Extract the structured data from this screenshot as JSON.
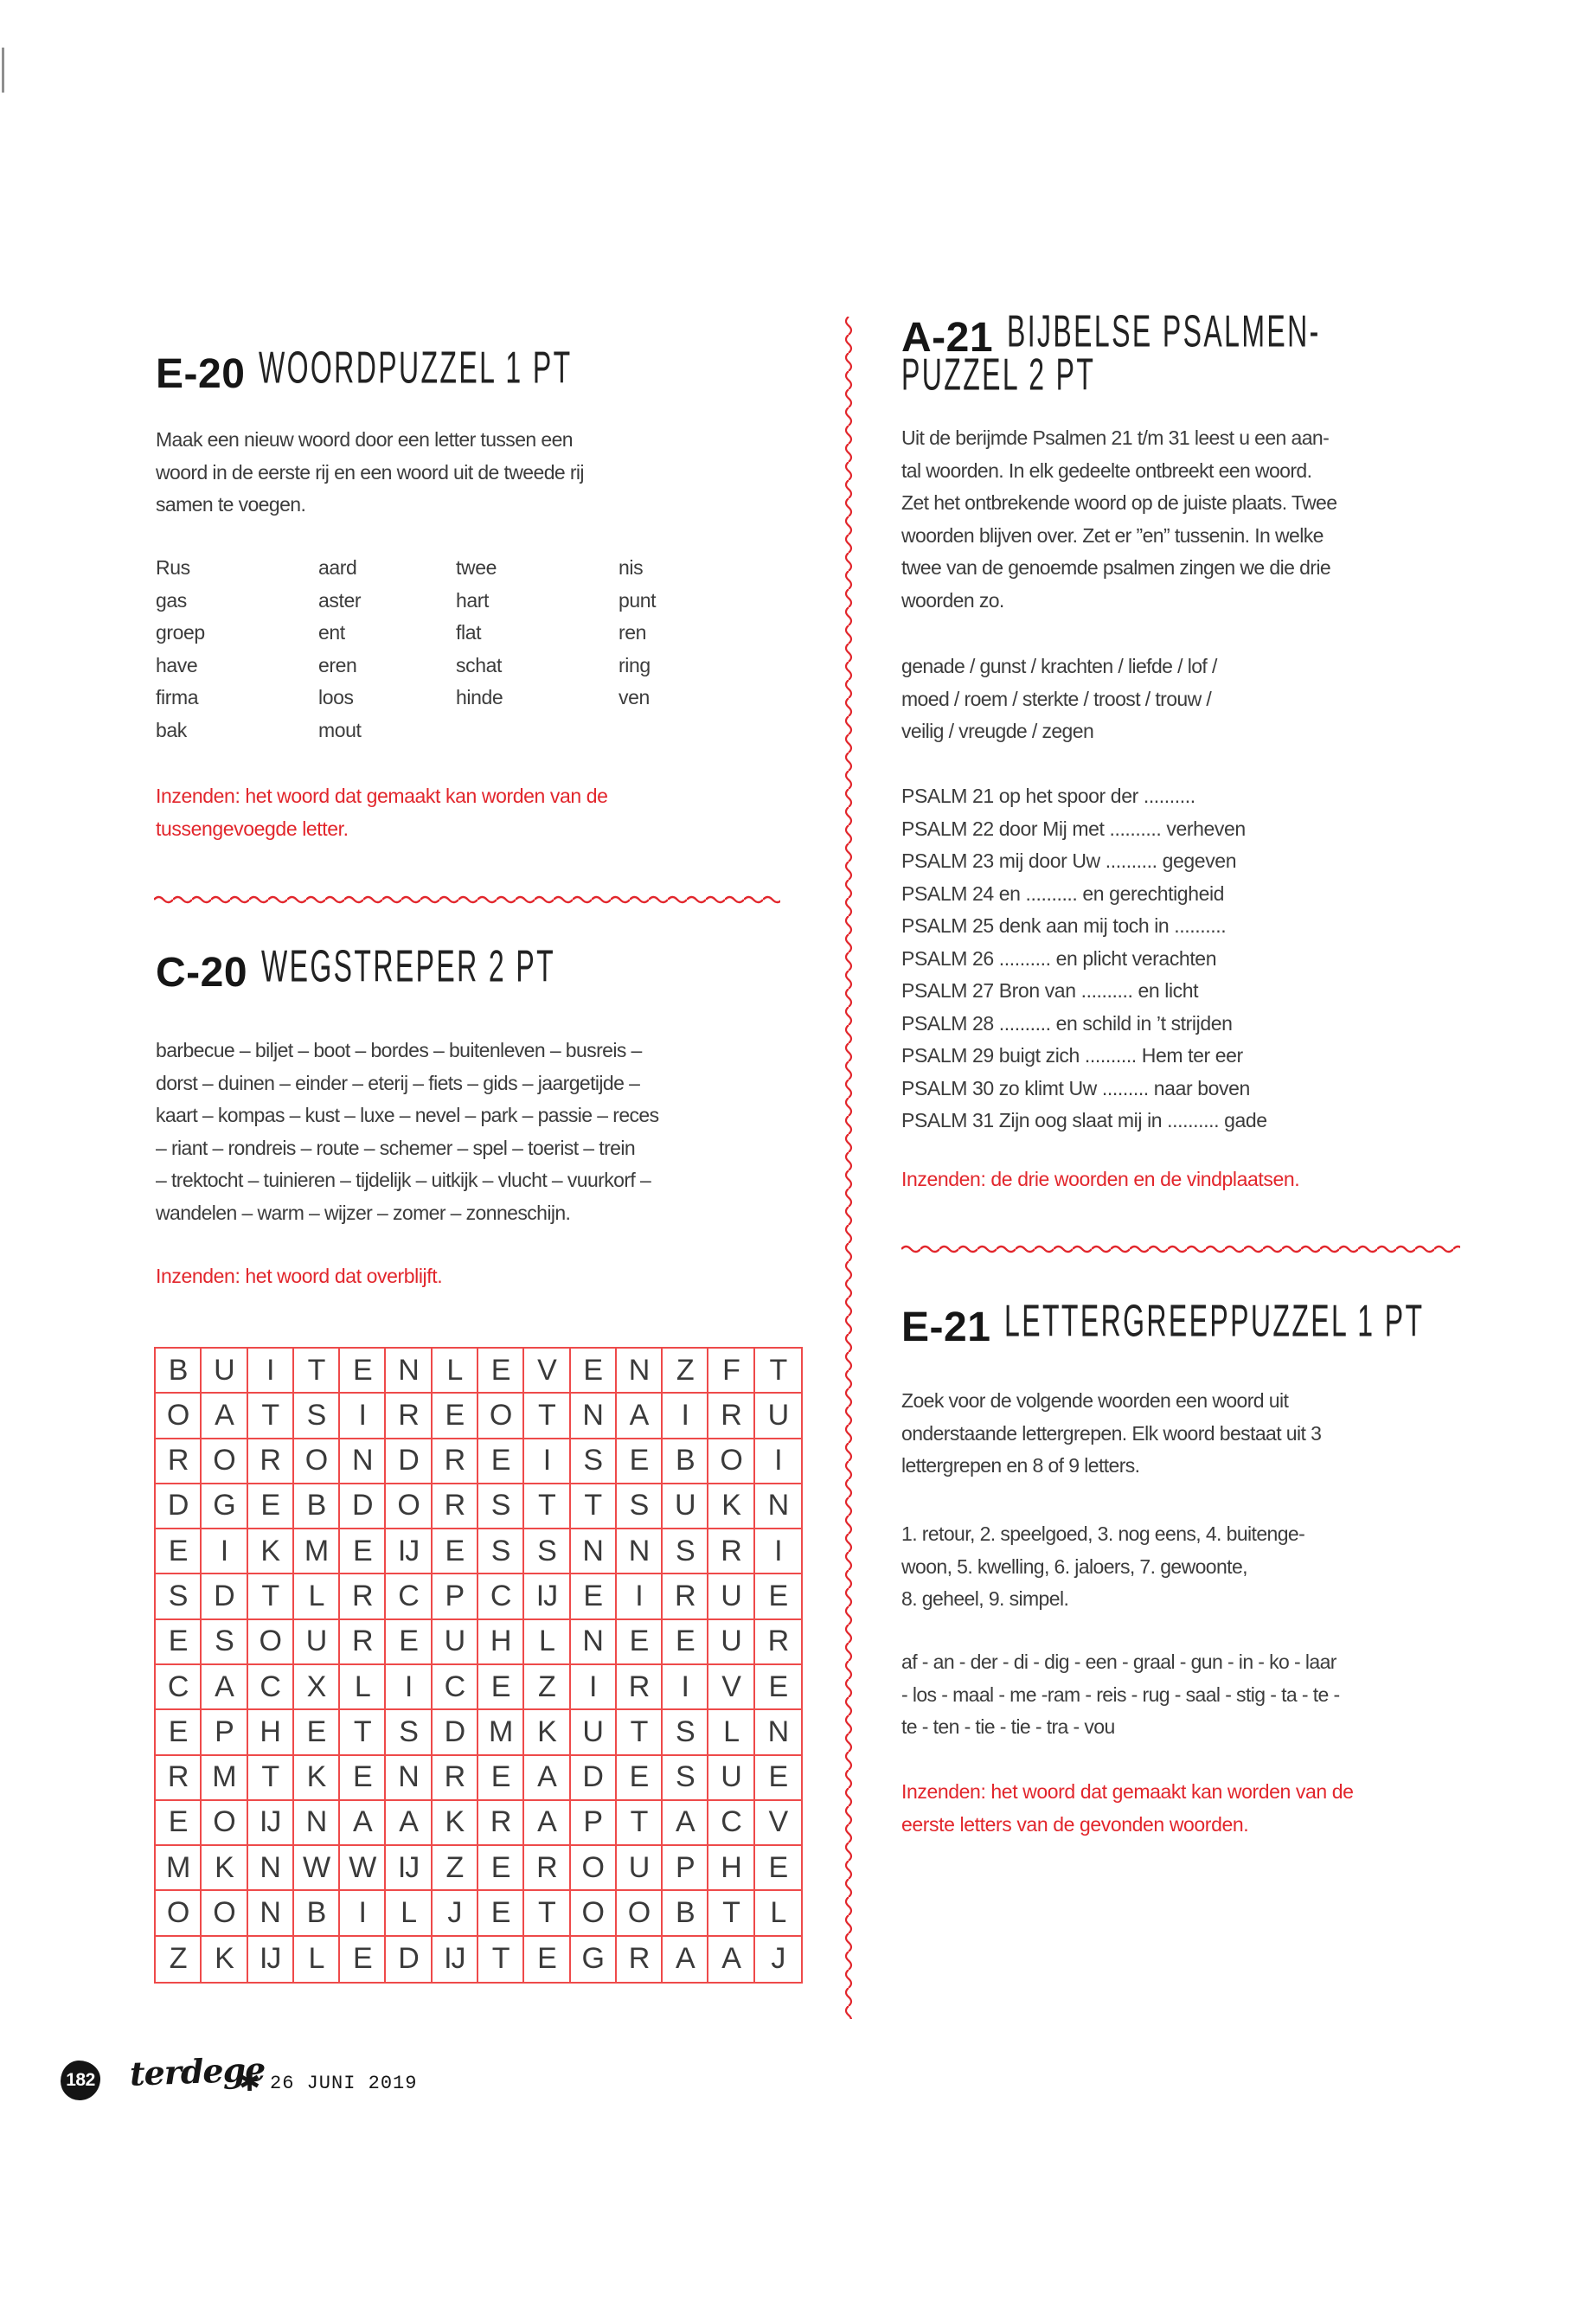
{
  "colors": {
    "accent_red": "#e2262c",
    "grid_red": "#ee4a4a",
    "body_text": "#3c3c3c",
    "title_text": "#161616"
  },
  "puzzles": {
    "e20": {
      "code": "E-20",
      "title": "WOORDPUZZEL 1 PT",
      "intro": "Maak een nieuw woord door een letter tussen een\nwoord in de eerste rij en een woord uit de tweede rij\nsamen te voegen.",
      "word_columns": [
        [
          "Rus",
          "gas",
          "groep",
          "have",
          "firma",
          "bak"
        ],
        [
          "aard",
          "aster",
          "ent",
          "eren",
          "loos",
          "mout"
        ],
        [
          "twee",
          "hart",
          "flat",
          "schat",
          "hinde"
        ],
        [
          "nis",
          "punt",
          "ren",
          "ring",
          "ven"
        ]
      ],
      "inzenden": "Inzenden: het woord dat gemaakt kan worden van de\ntussengevoegde letter."
    },
    "c20": {
      "code": "C-20",
      "title": "WEGSTREPER 2 PT",
      "words": "barbecue – biljet – boot – bordes – buitenleven – busreis –\ndorst – duinen – einder – eterij – fiets – gids – jaargetijde –\nkaart – kompas – kust – luxe – nevel – park – passie – reces\n– riant – rondreis – route – schemer – spel – toerist – trein\n– trektocht – tuinieren – tijdelijk – uitkijk – vlucht – vuurkorf –\nwandelen – warm – wijzer – zomer – zonneschijn.",
      "inzenden": "Inzenden: het woord dat overblijft.",
      "grid": [
        [
          "B",
          "U",
          "I",
          "T",
          "E",
          "N",
          "L",
          "E",
          "V",
          "E",
          "N",
          "Z",
          "F",
          "T"
        ],
        [
          "O",
          "A",
          "T",
          "S",
          "I",
          "R",
          "E",
          "O",
          "T",
          "N",
          "A",
          "I",
          "R",
          "U"
        ],
        [
          "R",
          "O",
          "R",
          "O",
          "N",
          "D",
          "R",
          "E",
          "I",
          "S",
          "E",
          "B",
          "O",
          "I"
        ],
        [
          "D",
          "G",
          "E",
          "B",
          "D",
          "O",
          "R",
          "S",
          "T",
          "T",
          "S",
          "U",
          "K",
          "N"
        ],
        [
          "E",
          "I",
          "K",
          "M",
          "E",
          "IJ",
          "E",
          "S",
          "S",
          "N",
          "N",
          "S",
          "R",
          "I"
        ],
        [
          "S",
          "D",
          "T",
          "L",
          "R",
          "C",
          "P",
          "C",
          "IJ",
          "E",
          "I",
          "R",
          "U",
          "E"
        ],
        [
          "E",
          "S",
          "O",
          "U",
          "R",
          "E",
          "U",
          "H",
          "L",
          "N",
          "E",
          "E",
          "U",
          "R"
        ],
        [
          "C",
          "A",
          "C",
          "X",
          "L",
          "I",
          "C",
          "E",
          "Z",
          "I",
          "R",
          "I",
          "V",
          "E"
        ],
        [
          "E",
          "P",
          "H",
          "E",
          "T",
          "S",
          "D",
          "M",
          "K",
          "U",
          "T",
          "S",
          "L",
          "N"
        ],
        [
          "R",
          "M",
          "T",
          "K",
          "E",
          "N",
          "R",
          "E",
          "A",
          "D",
          "E",
          "S",
          "U",
          "E"
        ],
        [
          "E",
          "O",
          "IJ",
          "N",
          "A",
          "A",
          "K",
          "R",
          "A",
          "P",
          "T",
          "A",
          "C",
          "V"
        ],
        [
          "M",
          "K",
          "N",
          "W",
          "W",
          "IJ",
          "Z",
          "E",
          "R",
          "O",
          "U",
          "P",
          "H",
          "E"
        ],
        [
          "O",
          "O",
          "N",
          "B",
          "I",
          "L",
          "J",
          "E",
          "T",
          "O",
          "O",
          "B",
          "T",
          "L"
        ],
        [
          "Z",
          "K",
          "IJ",
          "L",
          "E",
          "D",
          "IJ",
          "T",
          "E",
          "G",
          "R",
          "A",
          "A",
          "J"
        ]
      ]
    },
    "a21": {
      "code": "A-21",
      "title_line1": "BIJBELSE PSALMEN-",
      "title_line2": "PUZZEL 2 PT",
      "intro": "Uit de berijmde Psalmen 21 t/m 31 leest u een aan-\ntal woorden. In elk gedeelte ontbreekt een woord.\nZet het ontbrekende woord op de juiste plaats. Twee\nwoorden blijven over. Zet er ”en” tussenin. In welke\ntwee van de genoemde psalmen zingen we die drie\nwoorden zo.",
      "word_bank": "genade / gunst / krachten / liefde / lof /\nmoed / roem / sterkte / troost / trouw /\nveilig / vreugde / zegen",
      "psalms": [
        "PSALM 21 op het spoor der ..........",
        "PSALM 22 door Mij met .......... verheven",
        "PSALM 23 mij door Uw .......... gegeven",
        "PSALM 24 en .......... en gerechtigheid",
        "PSALM 25 denk aan mij toch in ..........",
        "PSALM 26 .......... en plicht verachten",
        "PSALM 27 Bron van .......... en licht",
        "PSALM 28 .......... en schild in ’t strijden",
        "PSALM 29 buigt zich .......... Hem ter eer",
        "PSALM 30 zo klimt Uw ......... naar boven",
        "PSALM 31 Zijn oog slaat mij in .......... gade"
      ],
      "inzenden": "Inzenden: de drie woorden en de vindplaatsen."
    },
    "e21": {
      "code": "E-21",
      "title": "LETTERGREEPPUZZEL 1 PT",
      "intro": "Zoek voor de volgende woorden een woord uit\nonderstaande lettergrepen. Elk woord bestaat uit 3\nlettergrepen en 8 of 9 letters.",
      "clues": "1. retour, 2. speelgoed, 3. nog eens, 4. buitenge-\nwoon, 5. kwelling, 6. jaloers, 7. gewoonte,\n8. geheel, 9. simpel.",
      "syllables": "af - an - der - di - dig - een - graal - gun - in - ko - laar\n- los - maal - me -ram - reis - rug - saal - stig - ta - te -\nte - ten - tie - tie - tra - vou",
      "inzenden": "Inzenden: het woord dat gemaakt kan worden van de\neerste letters van de gevonden woorden."
    }
  },
  "footer": {
    "page_number": "182",
    "magazine": "terdege",
    "separator": "✱",
    "date": "26 JUNI 2019"
  }
}
